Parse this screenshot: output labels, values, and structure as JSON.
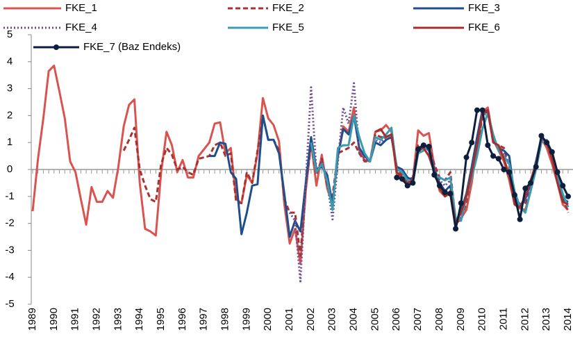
{
  "chart_data": {
    "type": "line",
    "legend": "top",
    "ylim": [
      -5,
      5
    ],
    "yticks": [
      -5,
      -4,
      -3,
      -2,
      -1,
      0,
      1,
      2,
      3,
      4,
      5
    ],
    "categories": [
      "1989",
      null,
      null,
      null,
      "1990",
      null,
      null,
      null,
      "1991",
      null,
      null,
      null,
      "1992",
      null,
      null,
      null,
      "1993",
      null,
      null,
      null,
      "1994",
      null,
      null,
      null,
      "1995",
      null,
      null,
      null,
      "1996",
      null,
      null,
      null,
      "1997",
      null,
      null,
      null,
      "1998",
      null,
      null,
      null,
      "1999",
      null,
      null,
      null,
      "2000",
      null,
      null,
      null,
      "2001",
      null,
      null,
      null,
      "2002",
      null,
      null,
      null,
      "2003",
      null,
      null,
      null,
      "2004",
      null,
      null,
      null,
      "2005",
      null,
      null,
      null,
      "2006",
      null,
      null,
      null,
      "2007",
      null,
      null,
      null,
      "2008",
      null,
      null,
      null,
      "2009",
      null,
      null,
      null,
      "2010",
      null,
      null,
      null,
      "2011",
      null,
      null,
      null,
      "2012",
      null,
      null,
      null,
      "2013",
      null,
      null,
      null,
      "2014"
    ],
    "series": [
      {
        "name": "FKE_1",
        "color": "#d9534f",
        "style": "solid",
        "values": [
          -1.55,
          0.4,
          1.9,
          3.65,
          3.85,
          2.9,
          1.9,
          0.3,
          -0.1,
          -1.1,
          -2.05,
          -0.65,
          -1.2,
          -1.2,
          -0.8,
          -1.05,
          0.1,
          1.6,
          2.4,
          2.6,
          -0.5,
          -2.2,
          -2.3,
          -2.45,
          -0.1,
          1.4,
          0.9,
          -0.1,
          0.35,
          -0.3,
          -0.3,
          0.5,
          0.75,
          1.0,
          1.7,
          1.75,
          0.6,
          0.8,
          -1.1,
          -1.25,
          -0.2,
          -0.5,
          0.6,
          2.65,
          1.9,
          1.65,
          1.05,
          -1.3,
          -2.75,
          -2.2,
          -3.5,
          -0.8,
          1.0,
          -0.6,
          0.55,
          -0.7,
          -1.3,
          0.5,
          1.6,
          1.4,
          2.3,
          0.7,
          0.35,
          0.3,
          1.4,
          1.45,
          1.65,
          1.4,
          -0.2,
          -0.4,
          -0.55,
          -0.4,
          1.45,
          1.25,
          1.35,
          0.1,
          -0.8,
          -1.0,
          -0.9,
          -2.05,
          -1.8,
          -1.5,
          -0.5,
          0.9,
          2.15,
          2.3,
          1.1,
          0.7,
          0.3,
          -0.4,
          -1.3,
          -1.45,
          -1.5,
          -0.8,
          0.2,
          1.15,
          0.8,
          0.2,
          -0.5,
          -1.3,
          -1.5
        ]
      },
      {
        "name": "FKE_2",
        "color": "#a83232",
        "style": "dashed",
        "values": [
          null,
          null,
          null,
          null,
          null,
          null,
          null,
          null,
          null,
          null,
          null,
          null,
          null,
          null,
          null,
          null,
          null,
          0.7,
          1.1,
          1.55,
          0.0,
          -0.6,
          -1.1,
          -1.2,
          0.2,
          0.8,
          0.55,
          0.0,
          0.1,
          -0.1,
          -0.2,
          0.4,
          0.45,
          0.5,
          0.9,
          1.0,
          0.5,
          0.6,
          -1.2,
          -1.25,
          -0.1,
          -0.5,
          0.7,
          2.0,
          1.1,
          1.1,
          0.7,
          -1.1,
          -1.6,
          -1.6,
          -3.2,
          -0.6,
          0.9,
          -0.2,
          0.4,
          -0.6,
          -1.0,
          0.6,
          0.7,
          0.8,
          1.0,
          0.6,
          0.3,
          0.3,
          1.3,
          1.2,
          1.2,
          1.3,
          0.0,
          -0.2,
          -0.4,
          -0.3,
          0.9,
          0.9,
          0.9,
          0.2,
          -0.3,
          -0.4,
          -0.1,
          -1.9,
          -1.9,
          -1.2,
          -0.2,
          0.7,
          2.0,
          2.2,
          1.0,
          0.9,
          0.8,
          0.1,
          -0.9,
          -1.3,
          -1.3,
          -0.7,
          0.2,
          1.1,
          1.0,
          0.5,
          -0.3,
          -1.0,
          -1.6
        ]
      },
      {
        "name": "FKE_3",
        "color": "#1f4e8c",
        "style": "solid",
        "values": [
          null,
          null,
          null,
          null,
          null,
          null,
          null,
          null,
          null,
          null,
          null,
          null,
          null,
          null,
          null,
          null,
          null,
          null,
          null,
          null,
          null,
          null,
          null,
          null,
          null,
          null,
          null,
          null,
          null,
          null,
          null,
          null,
          null,
          0.5,
          0.5,
          1.0,
          0.95,
          -0.1,
          -0.35,
          -2.4,
          -1.6,
          -0.6,
          -0.55,
          2.0,
          1.1,
          1.1,
          0.6,
          -0.9,
          -2.5,
          -1.9,
          -2.3,
          -0.5,
          1.2,
          0.0,
          0.1,
          -0.2,
          -1.3,
          0.5,
          1.5,
          1.3,
          2.0,
          0.8,
          0.5,
          0.3,
          1.0,
          0.9,
          1.1,
          1.2,
          0.1,
          0.0,
          -0.3,
          -0.4,
          0.8,
          0.9,
          0.7,
          0.0,
          -0.5,
          -0.8,
          -0.6,
          -2.0,
          -1.5,
          -0.9,
          0.1,
          1.2,
          2.2,
          2.1,
          1.1,
          0.8,
          0.7,
          0.5,
          -1.0,
          -1.4,
          -1.1,
          -0.5,
          0.3,
          1.2,
          1.0,
          0.4,
          -0.4,
          -1.1,
          -1.2
        ]
      },
      {
        "name": "FKE_4",
        "color": "#6b4c93",
        "style": "dotted",
        "values": [
          null,
          null,
          null,
          null,
          null,
          null,
          null,
          null,
          null,
          null,
          null,
          null,
          null,
          null,
          null,
          null,
          null,
          null,
          null,
          null,
          null,
          null,
          null,
          null,
          null,
          null,
          null,
          null,
          null,
          null,
          null,
          null,
          null,
          null,
          null,
          null,
          null,
          null,
          null,
          null,
          null,
          null,
          null,
          null,
          null,
          null,
          null,
          null,
          -1.6,
          -1.9,
          -4.15,
          -0.5,
          3.05,
          -0.1,
          0.3,
          -0.5,
          -1.85,
          0.3,
          2.3,
          1.7,
          3.2,
          0.6,
          0.4,
          0.3,
          1.1,
          1.0,
          1.2,
          1.3,
          0.0,
          -0.1,
          -0.4,
          -0.4,
          0.7,
          0.8,
          0.8,
          0.0,
          -0.4,
          -0.6,
          -0.4,
          -1.9,
          -1.8,
          -1.0,
          -0.1,
          0.8,
          2.0,
          2.1,
          1.1,
          0.8,
          0.6,
          0.2,
          -1.0,
          -1.3,
          -1.2,
          -0.6,
          0.2,
          1.1,
          1.0,
          0.5,
          -0.3,
          -1.0,
          -1.3
        ]
      },
      {
        "name": "FKE_5",
        "color": "#3a9bb0",
        "style": "solid",
        "values": [
          null,
          null,
          null,
          null,
          null,
          null,
          null,
          null,
          null,
          null,
          null,
          null,
          null,
          null,
          null,
          null,
          null,
          null,
          null,
          null,
          null,
          null,
          null,
          null,
          null,
          null,
          null,
          null,
          null,
          null,
          null,
          null,
          null,
          null,
          null,
          null,
          null,
          null,
          null,
          null,
          null,
          null,
          null,
          null,
          null,
          null,
          null,
          null,
          null,
          null,
          null,
          null,
          1.0,
          -0.1,
          0.2,
          -0.4,
          -1.5,
          0.8,
          0.9,
          0.9,
          2.0,
          1.2,
          0.6,
          0.3,
          1.2,
          1.1,
          1.3,
          1.55,
          0.0,
          -0.1,
          -0.4,
          -0.5,
          0.6,
          0.7,
          0.9,
          -0.2,
          -0.3,
          -0.4,
          -0.3,
          -1.8,
          -1.9,
          -1.0,
          -0.3,
          0.5,
          1.5,
          2.1,
          1.3,
          0.7,
          0.5,
          0.2,
          -0.8,
          -1.4,
          -1.6,
          -0.8,
          0.0,
          1.0,
          1.1,
          0.6,
          -0.2,
          -0.9,
          -1.4
        ]
      },
      {
        "name": "FKE_6",
        "color": "#a3302e",
        "style": "solid",
        "values": [
          null,
          null,
          null,
          null,
          null,
          null,
          null,
          null,
          null,
          null,
          null,
          null,
          null,
          null,
          null,
          null,
          null,
          null,
          null,
          null,
          null,
          null,
          null,
          null,
          null,
          null,
          null,
          null,
          null,
          null,
          null,
          null,
          null,
          null,
          null,
          null,
          null,
          null,
          null,
          null,
          null,
          null,
          null,
          null,
          null,
          null,
          null,
          null,
          null,
          null,
          null,
          null,
          null,
          null,
          null,
          null,
          null,
          null,
          null,
          null,
          null,
          null,
          null,
          null,
          1.4,
          1.5,
          1.2,
          1.3,
          -0.1,
          -0.3,
          -0.5,
          -0.4,
          0.7,
          0.8,
          0.5,
          -0.1,
          -0.7,
          -1.0,
          -0.8,
          -2.0,
          -1.6,
          -1.0,
          -0.1,
          0.9,
          2.1,
          2.2,
          1.0,
          0.9,
          0.4,
          -0.2,
          -1.3,
          -1.4,
          -1.0,
          -0.4,
          0.2,
          1.2,
          1.0,
          0.4,
          -0.5,
          -1.2,
          -1.3
        ]
      },
      {
        "name": "FKE_7 (Baz Endeks)",
        "color": "#0d1f3c",
        "style": "solid",
        "marker": true,
        "values": [
          null,
          null,
          null,
          null,
          null,
          null,
          null,
          null,
          null,
          null,
          null,
          null,
          null,
          null,
          null,
          null,
          null,
          null,
          null,
          null,
          null,
          null,
          null,
          null,
          null,
          null,
          null,
          null,
          null,
          null,
          null,
          null,
          null,
          null,
          null,
          null,
          null,
          null,
          null,
          null,
          null,
          null,
          null,
          null,
          null,
          null,
          null,
          null,
          null,
          null,
          null,
          null,
          null,
          null,
          null,
          null,
          null,
          null,
          null,
          null,
          null,
          null,
          null,
          null,
          null,
          null,
          null,
          null,
          -0.3,
          -0.35,
          -0.6,
          -0.5,
          0.75,
          0.9,
          0.85,
          -0.2,
          -0.6,
          -0.85,
          -0.9,
          -2.2,
          -1.25,
          0.45,
          1.0,
          2.2,
          2.2,
          0.9,
          0.5,
          0.4,
          0.0,
          -0.1,
          -0.95,
          -1.85,
          -0.7,
          -0.5,
          0.1,
          1.25,
          1.0,
          0.65,
          -0.1,
          -0.6,
          -1.0
        ]
      }
    ]
  }
}
